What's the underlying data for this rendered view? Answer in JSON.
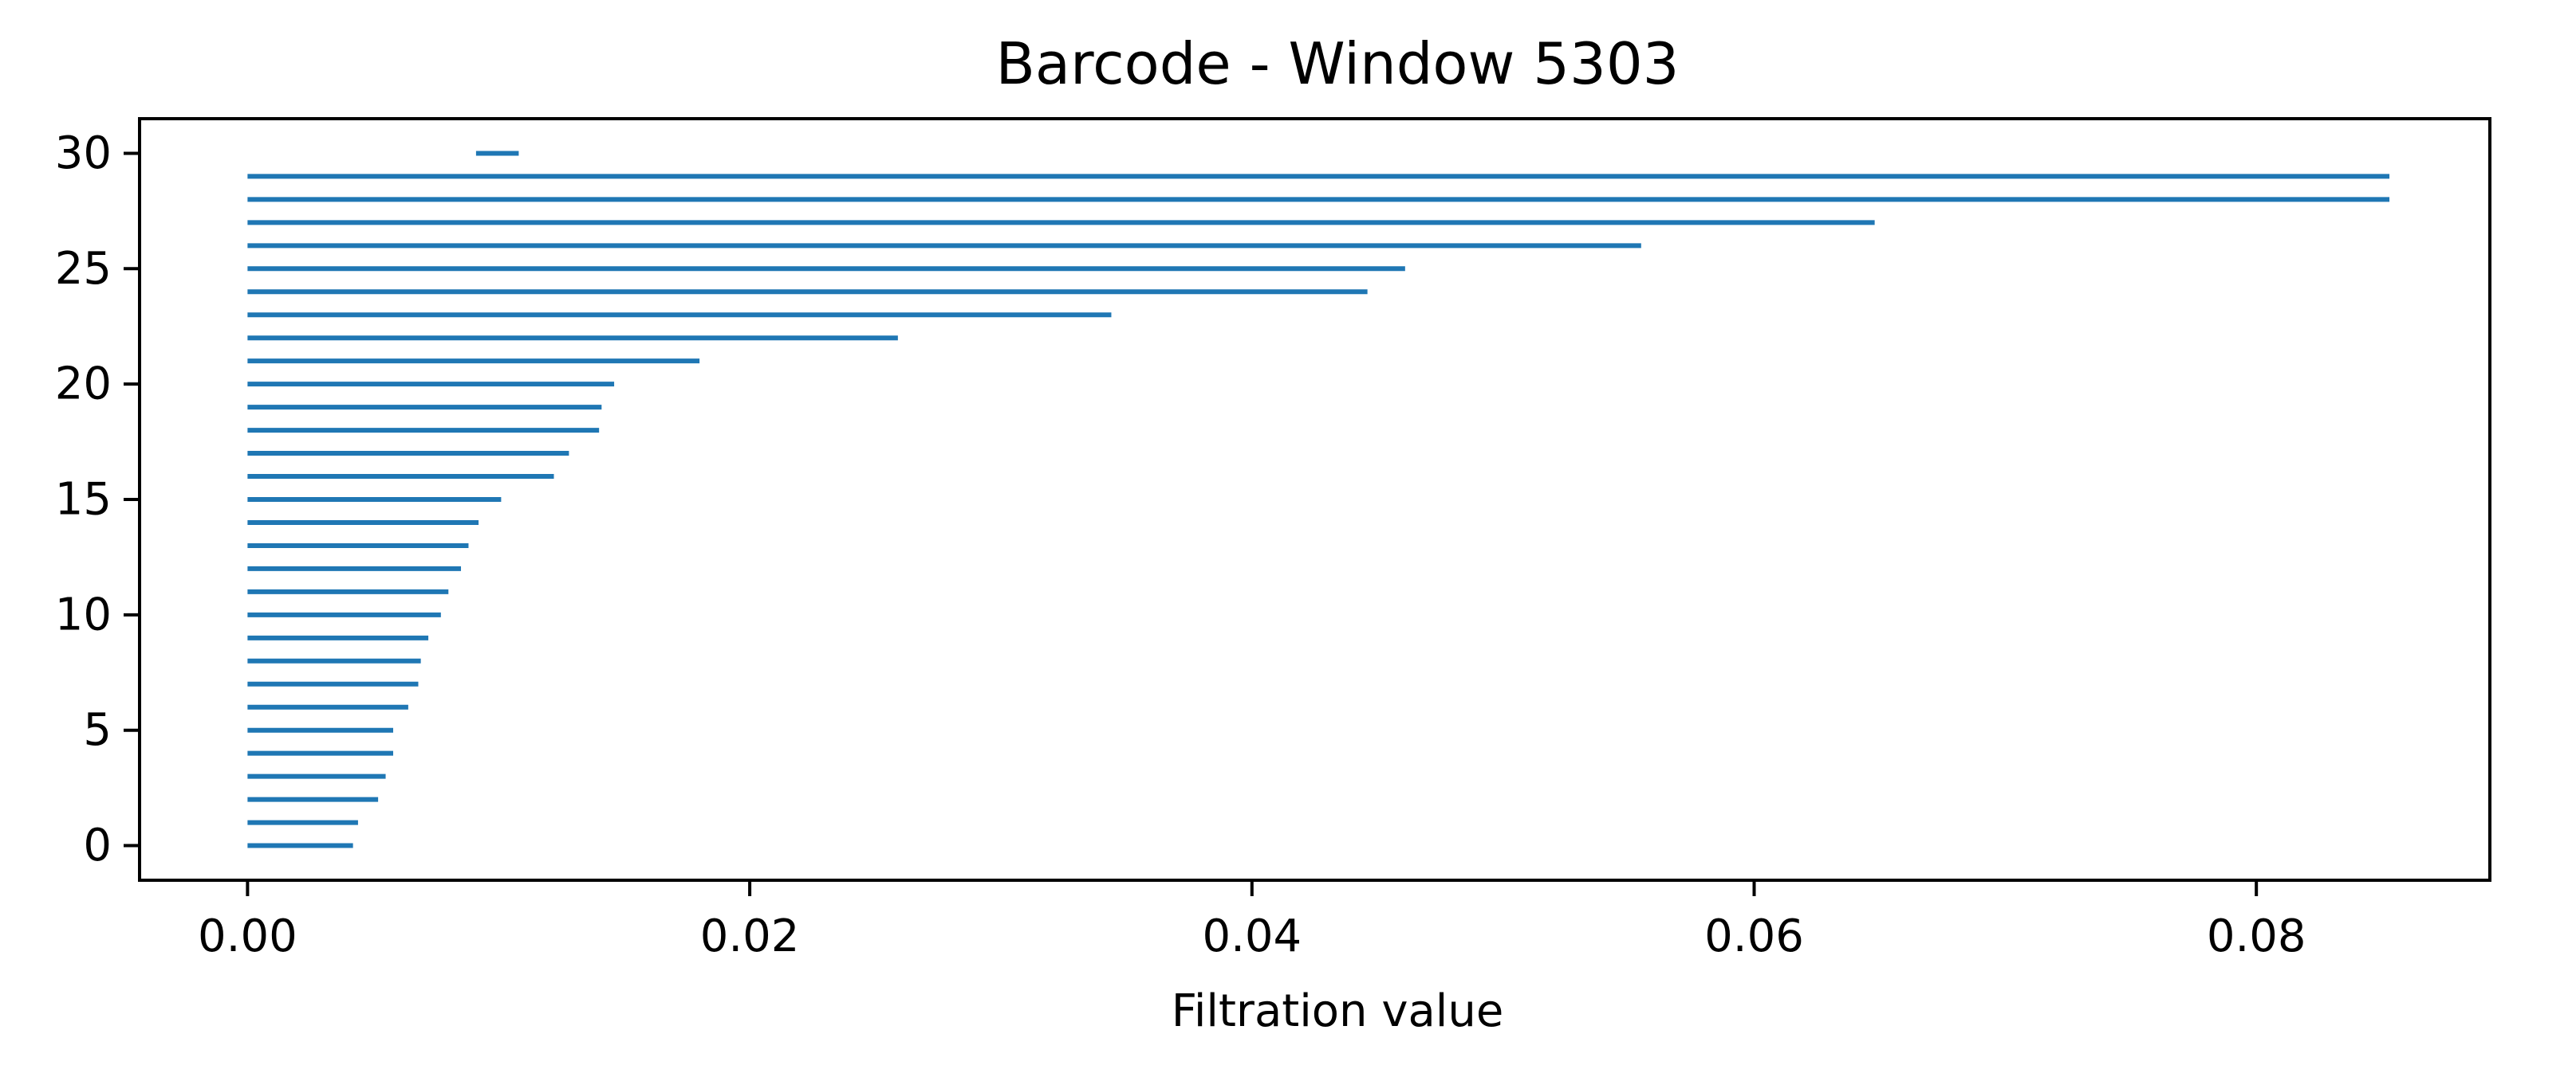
{
  "chart_data": {
    "type": "barcode",
    "title": "Barcode - Window 5303",
    "xlabel": "Filtration value",
    "ylabel": "",
    "xlim": [
      -0.0043,
      0.0893
    ],
    "ylim": [
      -1.5,
      31.5
    ],
    "x_ticks": [
      0.0,
      0.02,
      0.04,
      0.06,
      0.08
    ],
    "x_tick_labels": [
      "0.00",
      "0.02",
      "0.04",
      "0.06",
      "0.08"
    ],
    "y_ticks": [
      0,
      5,
      10,
      15,
      20,
      25,
      30
    ],
    "y_tick_labels": [
      "0",
      "5",
      "10",
      "15",
      "20",
      "25",
      "30"
    ],
    "grid": false,
    "legend": "none",
    "bar_color": "#1f77b4",
    "bars": [
      {
        "index": 0,
        "birth": 0.0,
        "death": 0.0042
      },
      {
        "index": 1,
        "birth": 0.0,
        "death": 0.0044
      },
      {
        "index": 2,
        "birth": 0.0,
        "death": 0.0052
      },
      {
        "index": 3,
        "birth": 0.0,
        "death": 0.0055
      },
      {
        "index": 4,
        "birth": 0.0,
        "death": 0.0058
      },
      {
        "index": 5,
        "birth": 0.0,
        "death": 0.0058
      },
      {
        "index": 6,
        "birth": 0.0,
        "death": 0.0064
      },
      {
        "index": 7,
        "birth": 0.0,
        "death": 0.0068
      },
      {
        "index": 8,
        "birth": 0.0,
        "death": 0.0069
      },
      {
        "index": 9,
        "birth": 0.0,
        "death": 0.0072
      },
      {
        "index": 10,
        "birth": 0.0,
        "death": 0.0077
      },
      {
        "index": 11,
        "birth": 0.0,
        "death": 0.008
      },
      {
        "index": 12,
        "birth": 0.0,
        "death": 0.0085
      },
      {
        "index": 13,
        "birth": 0.0,
        "death": 0.0088
      },
      {
        "index": 14,
        "birth": 0.0,
        "death": 0.0092
      },
      {
        "index": 15,
        "birth": 0.0,
        "death": 0.0101
      },
      {
        "index": 16,
        "birth": 0.0,
        "death": 0.0122
      },
      {
        "index": 17,
        "birth": 0.0,
        "death": 0.0128
      },
      {
        "index": 18,
        "birth": 0.0,
        "death": 0.014
      },
      {
        "index": 19,
        "birth": 0.0,
        "death": 0.0141
      },
      {
        "index": 20,
        "birth": 0.0,
        "death": 0.0146
      },
      {
        "index": 21,
        "birth": 0.0,
        "death": 0.018
      },
      {
        "index": 22,
        "birth": 0.0,
        "death": 0.0259
      },
      {
        "index": 23,
        "birth": 0.0,
        "death": 0.0344
      },
      {
        "index": 24,
        "birth": 0.0,
        "death": 0.0446
      },
      {
        "index": 25,
        "birth": 0.0,
        "death": 0.0461
      },
      {
        "index": 26,
        "birth": 0.0,
        "death": 0.0555
      },
      {
        "index": 27,
        "birth": 0.0,
        "death": 0.0648
      },
      {
        "index": 28,
        "birth": 0.0,
        "death": 0.0853
      },
      {
        "index": 29,
        "birth": 0.0,
        "death": 0.0853
      },
      {
        "index": 30,
        "birth": 0.0091,
        "death": 0.0108
      }
    ]
  }
}
